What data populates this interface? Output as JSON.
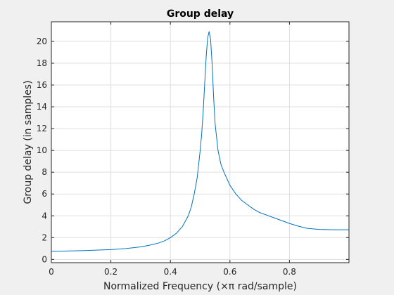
{
  "chart_data": {
    "type": "line",
    "title": "Group delay",
    "xlabel": "Normalized Frequency (×π rad/sample)",
    "ylabel": "Group delay (in samples)",
    "xlim": [
      0,
      1
    ],
    "ylim": [
      -0.3,
      21.8
    ],
    "grid": true,
    "x_ticks": [
      0,
      0.2,
      0.4,
      0.6,
      0.8
    ],
    "y_ticks": [
      0,
      2,
      4,
      6,
      8,
      10,
      12,
      14,
      16,
      18,
      20
    ],
    "x_tick_labels": [
      "0",
      "0.2",
      "0.4",
      "0.6",
      "0.8"
    ],
    "y_tick_labels": [
      "0",
      "2",
      "4",
      "6",
      "8",
      "10",
      "12",
      "14",
      "16",
      "18",
      "20"
    ],
    "line_color": "#0072bd",
    "series": [
      {
        "x": [
          0,
          0.05,
          0.1,
          0.15,
          0.2,
          0.25,
          0.3,
          0.33,
          0.36,
          0.38,
          0.4,
          0.42,
          0.44,
          0.46,
          0.47,
          0.48,
          0.49,
          0.5,
          0.505,
          0.51,
          0.515,
          0.52,
          0.525,
          0.53,
          0.535,
          0.54,
          0.545,
          0.55,
          0.56,
          0.57,
          0.58,
          0.59,
          0.6,
          0.62,
          0.64,
          0.66,
          0.68,
          0.7,
          0.72,
          0.75,
          0.78,
          0.8,
          0.83,
          0.86,
          0.9,
          0.95,
          1.0
        ],
        "values": [
          0.75,
          0.77,
          0.8,
          0.85,
          0.9,
          1.0,
          1.15,
          1.3,
          1.5,
          1.7,
          2.0,
          2.4,
          3.0,
          4.0,
          4.8,
          6.0,
          7.5,
          10.0,
          11.5,
          13.5,
          16.0,
          18.5,
          20.3,
          20.9,
          20.2,
          18.0,
          15.0,
          12.5,
          10.0,
          8.7,
          8.0,
          7.4,
          6.8,
          6.0,
          5.4,
          5.0,
          4.6,
          4.3,
          4.1,
          3.8,
          3.5,
          3.3,
          3.05,
          2.85,
          2.75,
          2.72,
          2.72
        ]
      }
    ]
  }
}
